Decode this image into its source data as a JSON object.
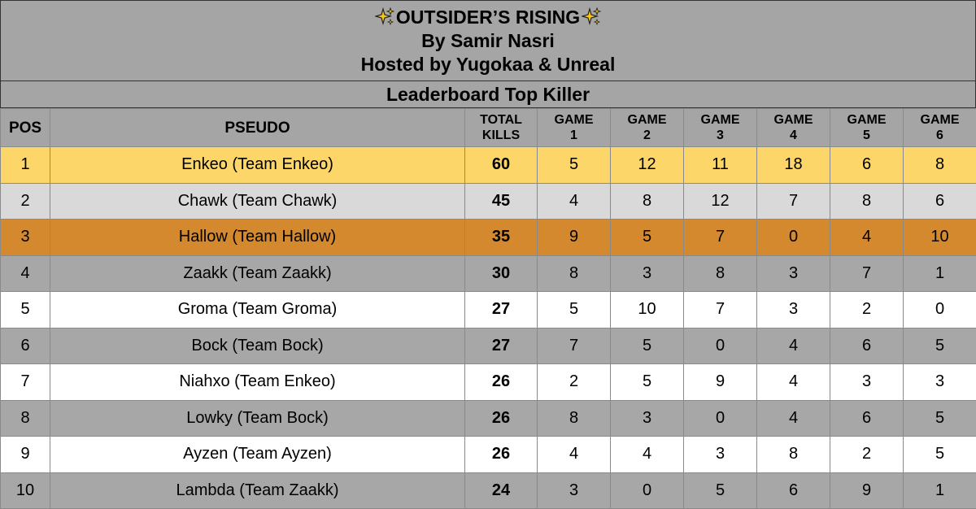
{
  "header": {
    "title": "OUTSIDER’S RISING",
    "author": "By Samir Nasri",
    "hosts": "Hosted by Yugokaa & Unreal",
    "subtitle": "Leaderboard Top Killer",
    "sparkle_icon": "sparkles-icon",
    "sparkle_color": "#f5c518"
  },
  "columns": {
    "pos": "POS",
    "pseudo": "PSEUDO",
    "total_kills": [
      "TOTAL",
      "KILLS"
    ],
    "games": [
      [
        "GAME",
        "1"
      ],
      [
        "GAME",
        "2"
      ],
      [
        "GAME",
        "3"
      ],
      [
        "GAME",
        "4"
      ],
      [
        "GAME",
        "5"
      ],
      [
        "GAME",
        "6"
      ]
    ]
  },
  "colors": {
    "header_gray": "#a5a5a5",
    "gold": "#fdd669",
    "silver": "#d9d9d9",
    "bronze": "#d4892f",
    "gray_row": "#a7a7a7",
    "white_row": "#ffffff"
  },
  "rows": [
    {
      "pos": "1",
      "pseudo": "Enkeo (Team Enkeo)",
      "total": "60",
      "games": [
        "5",
        "12",
        "11",
        "18",
        "6",
        "8"
      ],
      "style": "gold"
    },
    {
      "pos": "2",
      "pseudo": "Chawk (Team Chawk)",
      "total": "45",
      "games": [
        "4",
        "8",
        "12",
        "7",
        "8",
        "6"
      ],
      "style": "silver"
    },
    {
      "pos": "3",
      "pseudo": "Hallow (Team Hallow)",
      "total": "35",
      "games": [
        "9",
        "5",
        "7",
        "0",
        "4",
        "10"
      ],
      "style": "bronze"
    },
    {
      "pos": "4",
      "pseudo": "Zaakk (Team Zaakk)",
      "total": "30",
      "games": [
        "8",
        "3",
        "8",
        "3",
        "7",
        "1"
      ],
      "style": "gray"
    },
    {
      "pos": "5",
      "pseudo": "Groma (Team Groma)",
      "total": "27",
      "games": [
        "5",
        "10",
        "7",
        "3",
        "2",
        "0"
      ],
      "style": "white"
    },
    {
      "pos": "6",
      "pseudo": "Bock (Team Bock)",
      "total": "27",
      "games": [
        "7",
        "5",
        "0",
        "4",
        "6",
        "5"
      ],
      "style": "gray"
    },
    {
      "pos": "7",
      "pseudo": "Niahxo (Team Enkeo)",
      "total": "26",
      "games": [
        "2",
        "5",
        "9",
        "4",
        "3",
        "3"
      ],
      "style": "white"
    },
    {
      "pos": "8",
      "pseudo": "Lowky (Team Bock)",
      "total": "26",
      "games": [
        "8",
        "3",
        "0",
        "4",
        "6",
        "5"
      ],
      "style": "gray"
    },
    {
      "pos": "9",
      "pseudo": "Ayzen (Team Ayzen)",
      "total": "26",
      "games": [
        "4",
        "4",
        "3",
        "8",
        "2",
        "5"
      ],
      "style": "white"
    },
    {
      "pos": "10",
      "pseudo": "Lambda (Team Zaakk)",
      "total": "24",
      "games": [
        "3",
        "0",
        "5",
        "6",
        "9",
        "1"
      ],
      "style": "gray"
    }
  ]
}
